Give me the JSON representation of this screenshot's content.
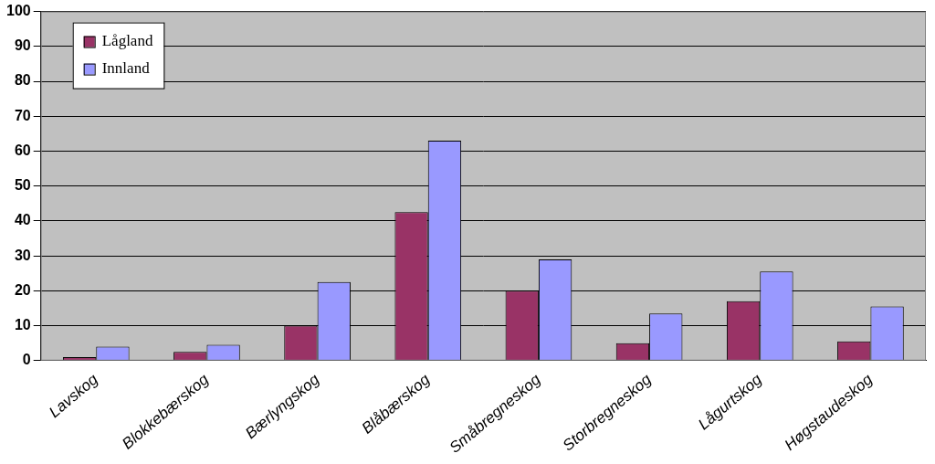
{
  "chart_data": {
    "type": "bar",
    "categories": [
      "Lavskog",
      "Blokkebærskog",
      "Bærlyngskog",
      "Blåbærskog",
      "Småbregneskog",
      "Storbregneskog",
      "Lågurtskog",
      "Høgstaudeskog"
    ],
    "series": [
      {
        "name": "Lågland",
        "color": "#993366",
        "values": [
          1,
          2.5,
          10,
          42.5,
          20,
          5,
          17,
          5.5
        ]
      },
      {
        "name": "Innland",
        "color": "#9999ff",
        "values": [
          4,
          4.5,
          22.5,
          63,
          29,
          13.5,
          25.5,
          15.5
        ]
      }
    ],
    "ylim": [
      0,
      100
    ],
    "yticks": [
      0,
      10,
      20,
      30,
      40,
      50,
      60,
      70,
      80,
      90,
      100
    ],
    "grid": true,
    "legend": "upper left"
  }
}
